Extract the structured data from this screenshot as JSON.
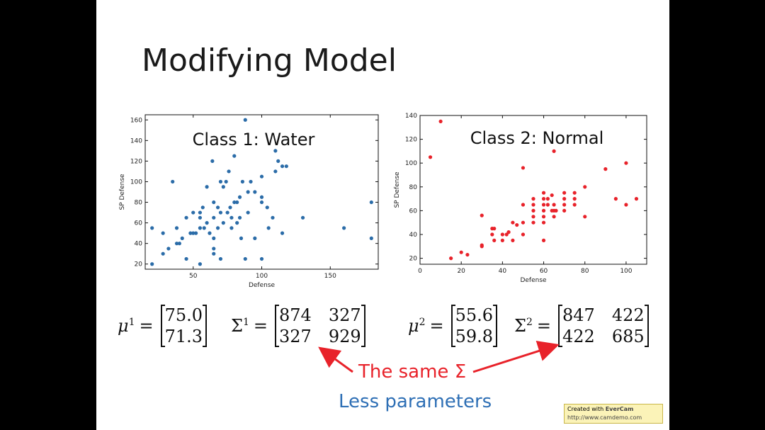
{
  "slide": {
    "title": "Modifying Model",
    "note_same": "The same Σ",
    "note_less": "Less parameters",
    "watermark_line1_prefix": "Created with ",
    "watermark_brand": "EverCam",
    "watermark_url": "http://www.camdemo.com"
  },
  "equations": {
    "mu1_lhs": "μ",
    "mu1_sup": "1",
    "mu1_values": [
      "75.0",
      "71.3"
    ],
    "sigma1_lhs": "Σ",
    "sigma1_sup": "1",
    "sigma1_col1": [
      "874",
      "327"
    ],
    "sigma1_col2": [
      "327",
      "929"
    ],
    "mu2_lhs": "μ",
    "mu2_sup": "2",
    "mu2_values": [
      "55.6",
      "59.8"
    ],
    "sigma2_lhs": "Σ",
    "sigma2_sup": "2",
    "sigma2_col1": [
      "847",
      "422"
    ],
    "sigma2_col2": [
      "422",
      "685"
    ],
    "equals": "="
  },
  "colors": {
    "water": "#2b6ca8",
    "normal": "#e8222a",
    "arrow": "#e8222a",
    "less": "#2e6fb5"
  },
  "chart_data": [
    {
      "type": "scatter",
      "title": "Class 1: Water",
      "xlabel": "Defense",
      "ylabel": "SP Defense",
      "xlim": [
        15,
        185
      ],
      "ylim": [
        15,
        165
      ],
      "xticks": [
        50,
        100,
        150
      ],
      "yticks": [
        20,
        40,
        60,
        80,
        100,
        120,
        140,
        160
      ],
      "grid": false,
      "color": "#2b6ca8",
      "points": [
        [
          20,
          20
        ],
        [
          20,
          55
        ],
        [
          28,
          50
        ],
        [
          28,
          30
        ],
        [
          32,
          35
        ],
        [
          35,
          100
        ],
        [
          38,
          55
        ],
        [
          38,
          40
        ],
        [
          40,
          40
        ],
        [
          42,
          45
        ],
        [
          45,
          65
        ],
        [
          45,
          25
        ],
        [
          48,
          50
        ],
        [
          50,
          50
        ],
        [
          50,
          70
        ],
        [
          52,
          50
        ],
        [
          55,
          55
        ],
        [
          55,
          70
        ],
        [
          55,
          65
        ],
        [
          55,
          20
        ],
        [
          57,
          75
        ],
        [
          58,
          55
        ],
        [
          60,
          60
        ],
        [
          60,
          95
        ],
        [
          62,
          50
        ],
        [
          64,
          120
        ],
        [
          65,
          80
        ],
        [
          65,
          45
        ],
        [
          65,
          35
        ],
        [
          65,
          30
        ],
        [
          65,
          65
        ],
        [
          68,
          75
        ],
        [
          68,
          55
        ],
        [
          70,
          100
        ],
        [
          70,
          70
        ],
        [
          70,
          25
        ],
        [
          72,
          95
        ],
        [
          72,
          60
        ],
        [
          74,
          100
        ],
        [
          75,
          70
        ],
        [
          76,
          110
        ],
        [
          77,
          75
        ],
        [
          78,
          55
        ],
        [
          78,
          65
        ],
        [
          80,
          80
        ],
        [
          80,
          125
        ],
        [
          82,
          80
        ],
        [
          82,
          60
        ],
        [
          84,
          85
        ],
        [
          84,
          65
        ],
        [
          85,
          45
        ],
        [
          86,
          100
        ],
        [
          88,
          160
        ],
        [
          88,
          25
        ],
        [
          90,
          90
        ],
        [
          90,
          70
        ],
        [
          92,
          100
        ],
        [
          95,
          90
        ],
        [
          95,
          45
        ],
        [
          100,
          105
        ],
        [
          100,
          85
        ],
        [
          100,
          25
        ],
        [
          100,
          80
        ],
        [
          104,
          75
        ],
        [
          105,
          55
        ],
        [
          108,
          65
        ],
        [
          110,
          110
        ],
        [
          110,
          130
        ],
        [
          112,
          120
        ],
        [
          115,
          115
        ],
        [
          115,
          50
        ],
        [
          118,
          115
        ],
        [
          130,
          65
        ],
        [
          180,
          80
        ],
        [
          180,
          45
        ],
        [
          160,
          55
        ]
      ]
    },
    {
      "type": "scatter",
      "title": "Class 2: Normal",
      "xlabel": "Defense",
      "ylabel": "SP Defense",
      "xlim": [
        0,
        110
      ],
      "ylim": [
        15,
        140
      ],
      "xticks": [
        0,
        20,
        40,
        60,
        80,
        100
      ],
      "yticks": [
        20,
        40,
        60,
        80,
        100,
        120,
        140
      ],
      "grid": false,
      "color": "#e8222a",
      "points": [
        [
          5,
          105
        ],
        [
          10,
          135
        ],
        [
          15,
          20
        ],
        [
          20,
          25
        ],
        [
          23,
          23
        ],
        [
          30,
          30
        ],
        [
          30,
          31
        ],
        [
          30,
          56
        ],
        [
          35,
          45
        ],
        [
          35,
          40
        ],
        [
          36,
          35
        ],
        [
          36,
          45
        ],
        [
          40,
          40
        ],
        [
          40,
          35
        ],
        [
          42,
          40
        ],
        [
          43,
          42
        ],
        [
          45,
          50
        ],
        [
          45,
          35
        ],
        [
          47,
          48
        ],
        [
          50,
          50
        ],
        [
          50,
          65
        ],
        [
          50,
          96
        ],
        [
          50,
          40
        ],
        [
          55,
          55
        ],
        [
          55,
          60
        ],
        [
          55,
          65
        ],
        [
          55,
          70
        ],
        [
          55,
          50
        ],
        [
          60,
          75
        ],
        [
          60,
          70
        ],
        [
          60,
          65
        ],
        [
          60,
          60
        ],
        [
          60,
          55
        ],
        [
          60,
          50
        ],
        [
          60,
          35
        ],
        [
          62,
          65
        ],
        [
          62,
          70
        ],
        [
          64,
          60
        ],
        [
          64,
          73
        ],
        [
          65,
          55
        ],
        [
          65,
          60
        ],
        [
          65,
          65
        ],
        [
          65,
          110
        ],
        [
          66,
          60
        ],
        [
          70,
          75
        ],
        [
          70,
          70
        ],
        [
          70,
          65
        ],
        [
          70,
          60
        ],
        [
          75,
          65
        ],
        [
          75,
          70
        ],
        [
          75,
          75
        ],
        [
          80,
          80
        ],
        [
          80,
          55
        ],
        [
          90,
          95
        ],
        [
          95,
          70
        ],
        [
          100,
          100
        ],
        [
          100,
          65
        ],
        [
          105,
          70
        ]
      ]
    }
  ]
}
